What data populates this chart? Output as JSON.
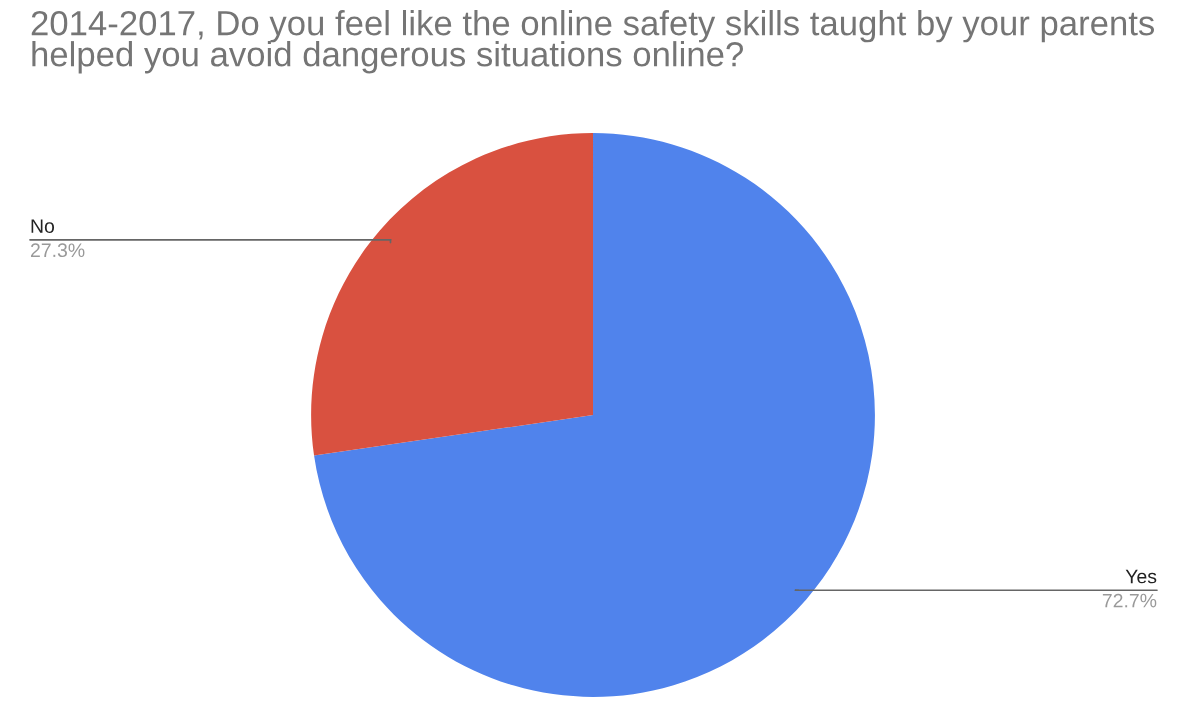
{
  "chart_data": {
    "type": "pie",
    "title": "2014-2017, Do you feel like the online safety skills taught by your parents helped you avoid dangerous situations online?",
    "categories": [
      "Yes",
      "No"
    ],
    "values": [
      72.7,
      27.3
    ],
    "colors": [
      "#5083ec",
      "#d95140"
    ],
    "value_labels": [
      "72.7%",
      "27.3%"
    ]
  }
}
